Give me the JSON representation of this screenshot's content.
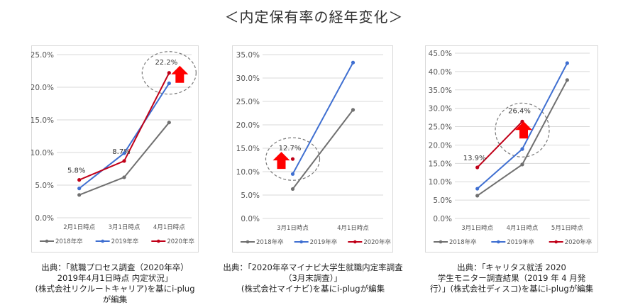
{
  "title": "＜内定保有率の経年変化＞",
  "chart_data": [
    {
      "type": "line",
      "categories": [
        "2月1日時点",
        "3月1日時点",
        "4月1日時点"
      ],
      "ylim": [
        0,
        25
      ],
      "yticks": [
        "0.0%",
        "5.0%",
        "10.0%",
        "15.0%",
        "20.0%",
        "25.0%"
      ],
      "series": [
        {
          "name": "2018年卒",
          "color": "#707070",
          "values": [
            3.5,
            6.2,
            14.6
          ]
        },
        {
          "name": "2019年卒",
          "color": "#3f6fd1",
          "values": [
            4.5,
            9.9,
            20.6
          ]
        },
        {
          "name": "2020年卒",
          "color": "#c00018",
          "values": [
            5.8,
            8.7,
            22.2
          ]
        }
      ],
      "data_labels": [
        {
          "series": 2,
          "index": 0,
          "text": "5.8%"
        },
        {
          "series": 2,
          "index": 1,
          "text": "8.7%"
        },
        {
          "series": 2,
          "index": 2,
          "text": "22.2%"
        }
      ],
      "highlight": {
        "series": 2,
        "index": 2
      },
      "grid": true,
      "legend": "bottom",
      "caption": [
        "出典：「就職プロセス調査（2020年卒）",
        "2019年4月1日時点 内定状況」",
        "(株式会社リクルートキャリア)を基にi-plug",
        "が編集"
      ]
    },
    {
      "type": "line",
      "categories": [
        "3月1日時点",
        "4月1日時点"
      ],
      "ylim": [
        0,
        35
      ],
      "yticks": [
        "0.0%",
        "5.0%",
        "10.0%",
        "15.0%",
        "20.0%",
        "25.0%",
        "30.0%",
        "35.0%"
      ],
      "series": [
        {
          "name": "2018年卒",
          "color": "#707070",
          "values": [
            6.3,
            23.2
          ]
        },
        {
          "name": "2019年卒",
          "color": "#3f6fd1",
          "values": [
            9.5,
            33.3
          ]
        },
        {
          "name": "2020年卒",
          "color": "#c00018",
          "values": [
            12.7,
            null
          ]
        }
      ],
      "data_labels": [
        {
          "series": 2,
          "index": 0,
          "text": "12.7%"
        }
      ],
      "highlight": {
        "series": 2,
        "index": 0
      },
      "grid": true,
      "legend": "bottom",
      "caption": [
        "出典：「2020年卒マイナビ大学生就職内定率調査",
        "（3月末調査）」",
        "(株式会社マイナビ)を基にi-plugが編集"
      ]
    },
    {
      "type": "line",
      "categories": [
        "3月1日時点",
        "4月1日時点",
        "5月1日時点"
      ],
      "ylim": [
        0,
        45
      ],
      "yticks": [
        "0.0%",
        "5.0%",
        "10.0%",
        "15.0%",
        "20.0%",
        "25.0%",
        "30.0%",
        "35.0%",
        "40.0%",
        "45.0%"
      ],
      "series": [
        {
          "name": "2018年卒",
          "color": "#707070",
          "values": [
            6.2,
            14.7,
            37.7
          ]
        },
        {
          "name": "2019年卒",
          "color": "#3f6fd1",
          "values": [
            8.1,
            18.9,
            42.3
          ]
        },
        {
          "name": "2020年卒",
          "color": "#c00018",
          "values": [
            13.9,
            26.4,
            null
          ]
        }
      ],
      "data_labels": [
        {
          "series": 2,
          "index": 0,
          "text": "13.9%"
        },
        {
          "series": 2,
          "index": 1,
          "text": "26.4%"
        }
      ],
      "highlight": {
        "series": 2,
        "index": 1
      },
      "grid": true,
      "legend": "bottom",
      "caption": [
        "出典：「キャリタス就活 2020",
        "学生モニター調査結果（2019 年 4 月発",
        "行）」(株式会社ディスコ)を基にi-plugが編集"
      ]
    }
  ]
}
